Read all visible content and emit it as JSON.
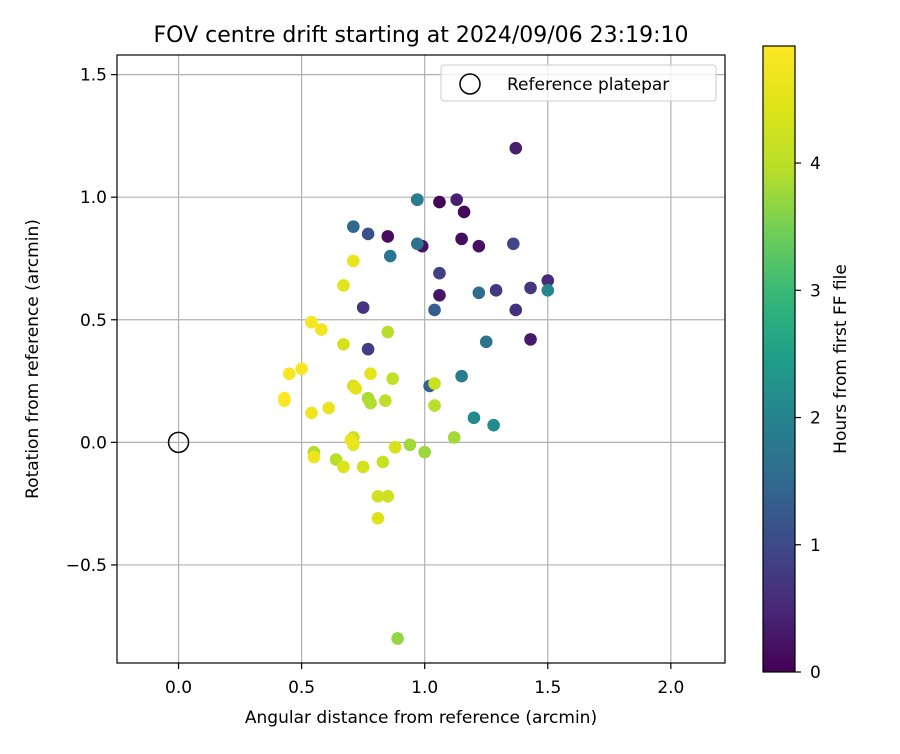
{
  "chart_data": {
    "type": "scatter",
    "title": "FOV centre drift starting at 2024/09/06 23:19:10",
    "xlabel": "Angular distance from reference (arcmin)",
    "ylabel": "Rotation from reference (arcmin)",
    "xlim": [
      -0.25,
      2.22
    ],
    "ylim": [
      -0.9,
      1.58
    ],
    "xticks": [
      0.0,
      0.5,
      1.0,
      1.5,
      2.0
    ],
    "xtick_labels": [
      "0.0",
      "0.5",
      "1.0",
      "1.5",
      "2.0"
    ],
    "yticks": [
      -0.5,
      0.0,
      0.5,
      1.0,
      1.5
    ],
    "ytick_labels": [
      "−0.5",
      "0.0",
      "0.5",
      "1.0",
      "1.5"
    ],
    "grid": true,
    "legend": {
      "position": "upper-right",
      "entries": [
        "Reference platepar"
      ]
    },
    "colormap": "viridis",
    "colorbar": {
      "label": "Hours from first FF file",
      "range": [
        0,
        4.92
      ],
      "ticks": [
        0,
        1,
        2,
        3,
        4
      ],
      "tick_labels": [
        "0",
        "1",
        "2",
        "3",
        "4"
      ]
    },
    "reference_point": {
      "name": "Reference platepar",
      "x": 0.0,
      "y": 0.0
    },
    "series": [
      {
        "points": [
          {
            "x": 0.97,
            "y": 0.99,
            "h": 0.0
          },
          {
            "x": 1.06,
            "y": 0.98,
            "h": 0.05
          },
          {
            "x": 1.16,
            "y": 0.94,
            "h": 0.1
          },
          {
            "x": 0.85,
            "y": 0.84,
            "h": 0.15
          },
          {
            "x": 1.15,
            "y": 0.83,
            "h": 0.15
          },
          {
            "x": 0.99,
            "y": 0.8,
            "h": 0.2
          },
          {
            "x": 1.22,
            "y": 0.8,
            "h": 0.2
          },
          {
            "x": 1.06,
            "y": 0.6,
            "h": 0.25
          },
          {
            "x": 1.43,
            "y": 0.42,
            "h": 0.3
          },
          {
            "x": 1.37,
            "y": 1.2,
            "h": 0.35
          },
          {
            "x": 1.13,
            "y": 0.99,
            "h": 0.4
          },
          {
            "x": 1.5,
            "y": 0.66,
            "h": 0.55
          },
          {
            "x": 1.37,
            "y": 0.54,
            "h": 0.6
          },
          {
            "x": 0.75,
            "y": 0.55,
            "h": 0.65
          },
          {
            "x": 1.43,
            "y": 0.63,
            "h": 0.7
          },
          {
            "x": 1.29,
            "y": 0.62,
            "h": 0.75
          },
          {
            "x": 0.77,
            "y": 0.38,
            "h": 0.8
          },
          {
            "x": 1.06,
            "y": 0.69,
            "h": 0.85
          },
          {
            "x": 1.36,
            "y": 0.81,
            "h": 0.95
          },
          {
            "x": 0.77,
            "y": 0.85,
            "h": 1.1
          },
          {
            "x": 1.04,
            "y": 0.54,
            "h": 1.3
          },
          {
            "x": 1.02,
            "y": 0.23,
            "h": 1.4
          },
          {
            "x": 0.71,
            "y": 0.88,
            "h": 1.5
          },
          {
            "x": 1.22,
            "y": 0.61,
            "h": 1.55
          },
          {
            "x": 0.97,
            "y": 0.81,
            "h": 1.65
          },
          {
            "x": 1.25,
            "y": 0.41,
            "h": 1.7
          },
          {
            "x": 0.86,
            "y": 0.76,
            "h": 1.75
          },
          {
            "x": 1.15,
            "y": 0.27,
            "h": 1.85
          },
          {
            "x": 0.97,
            "y": 0.99,
            "h": 1.9
          },
          {
            "x": 1.5,
            "y": 0.62,
            "h": 2.05
          },
          {
            "x": 1.2,
            "y": 0.1,
            "h": 2.1
          },
          {
            "x": 1.28,
            "y": 0.07,
            "h": 2.15
          },
          {
            "x": 0.89,
            "y": -0.8,
            "h": 3.7
          },
          {
            "x": 1.0,
            "y": -0.04,
            "h": 3.75
          },
          {
            "x": 1.12,
            "y": 0.02,
            "h": 3.8
          },
          {
            "x": 0.94,
            "y": -0.01,
            "h": 3.8
          },
          {
            "x": 0.77,
            "y": 0.18,
            "h": 3.85
          },
          {
            "x": 0.78,
            "y": 0.16,
            "h": 3.9
          },
          {
            "x": 0.55,
            "y": -0.04,
            "h": 3.9
          },
          {
            "x": 0.85,
            "y": 0.45,
            "h": 3.95
          },
          {
            "x": 1.04,
            "y": 0.15,
            "h": 3.95
          },
          {
            "x": 0.64,
            "y": -0.07,
            "h": 4.0
          },
          {
            "x": 0.84,
            "y": 0.17,
            "h": 4.05
          },
          {
            "x": 0.87,
            "y": 0.26,
            "h": 4.1
          },
          {
            "x": 0.83,
            "y": -0.08,
            "h": 4.15
          },
          {
            "x": 0.71,
            "y": 0.02,
            "h": 4.15
          },
          {
            "x": 1.04,
            "y": 0.24,
            "h": 4.2
          },
          {
            "x": 0.81,
            "y": -0.22,
            "h": 4.25
          },
          {
            "x": 0.85,
            "y": -0.22,
            "h": 4.25
          },
          {
            "x": 0.75,
            "y": -0.1,
            "h": 4.3
          },
          {
            "x": 0.67,
            "y": 0.4,
            "h": 4.3
          },
          {
            "x": 0.71,
            "y": 0.23,
            "h": 4.35
          },
          {
            "x": 0.88,
            "y": -0.02,
            "h": 4.35
          },
          {
            "x": 0.67,
            "y": -0.1,
            "h": 4.4
          },
          {
            "x": 0.81,
            "y": -0.31,
            "h": 4.45
          },
          {
            "x": 0.67,
            "y": 0.64,
            "h": 4.5
          },
          {
            "x": 0.78,
            "y": 0.28,
            "h": 4.55
          },
          {
            "x": 0.72,
            "y": 0.22,
            "h": 4.55
          },
          {
            "x": 0.61,
            "y": 0.14,
            "h": 4.6
          },
          {
            "x": 0.71,
            "y": -0.01,
            "h": 4.6
          },
          {
            "x": 0.7,
            "y": 0.01,
            "h": 4.65
          },
          {
            "x": 0.71,
            "y": 0.74,
            "h": 4.65
          },
          {
            "x": 0.55,
            "y": -0.06,
            "h": 4.7
          },
          {
            "x": 0.54,
            "y": 0.12,
            "h": 4.7
          },
          {
            "x": 0.58,
            "y": 0.46,
            "h": 4.75
          },
          {
            "x": 0.54,
            "y": 0.49,
            "h": 4.8
          },
          {
            "x": 0.5,
            "y": 0.3,
            "h": 4.85
          },
          {
            "x": 0.45,
            "y": 0.28,
            "h": 4.85
          },
          {
            "x": 0.43,
            "y": 0.17,
            "h": 4.9
          },
          {
            "x": 0.43,
            "y": 0.18,
            "h": 4.92
          }
        ]
      }
    ]
  }
}
